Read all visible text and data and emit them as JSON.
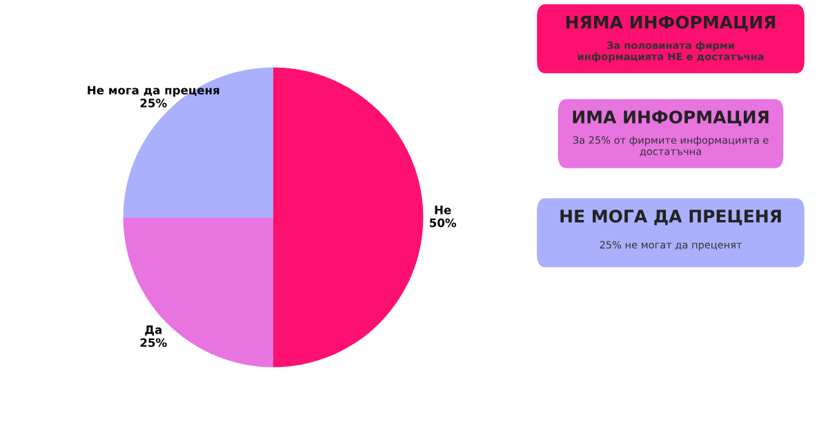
{
  "chart_data": [
    {
      "type": "pie",
      "categories": [
        "Не",
        "Да",
        "Не мога да преценя"
      ],
      "values": [
        50,
        25,
        25
      ],
      "colors": [
        "#fc1170",
        "#e874e0",
        "#aab0fc"
      ],
      "value_labels": [
        "50%",
        "25%",
        "25%"
      ]
    },
    {
      "type": "other",
      "annotations": [
        "НЯМА ИНФОРМАЦИЯ",
        "За половината фирми\nинформацията НЕ е достатъчна",
        "ИМА ИНФОРМАЦИЯ",
        "За 25% от фирмите информацията е\nдостатъчна",
        "НЕ МОГА ДА ПРЕЦЕНЯ",
        "25% не могат да преценят"
      ]
    }
  ]
}
